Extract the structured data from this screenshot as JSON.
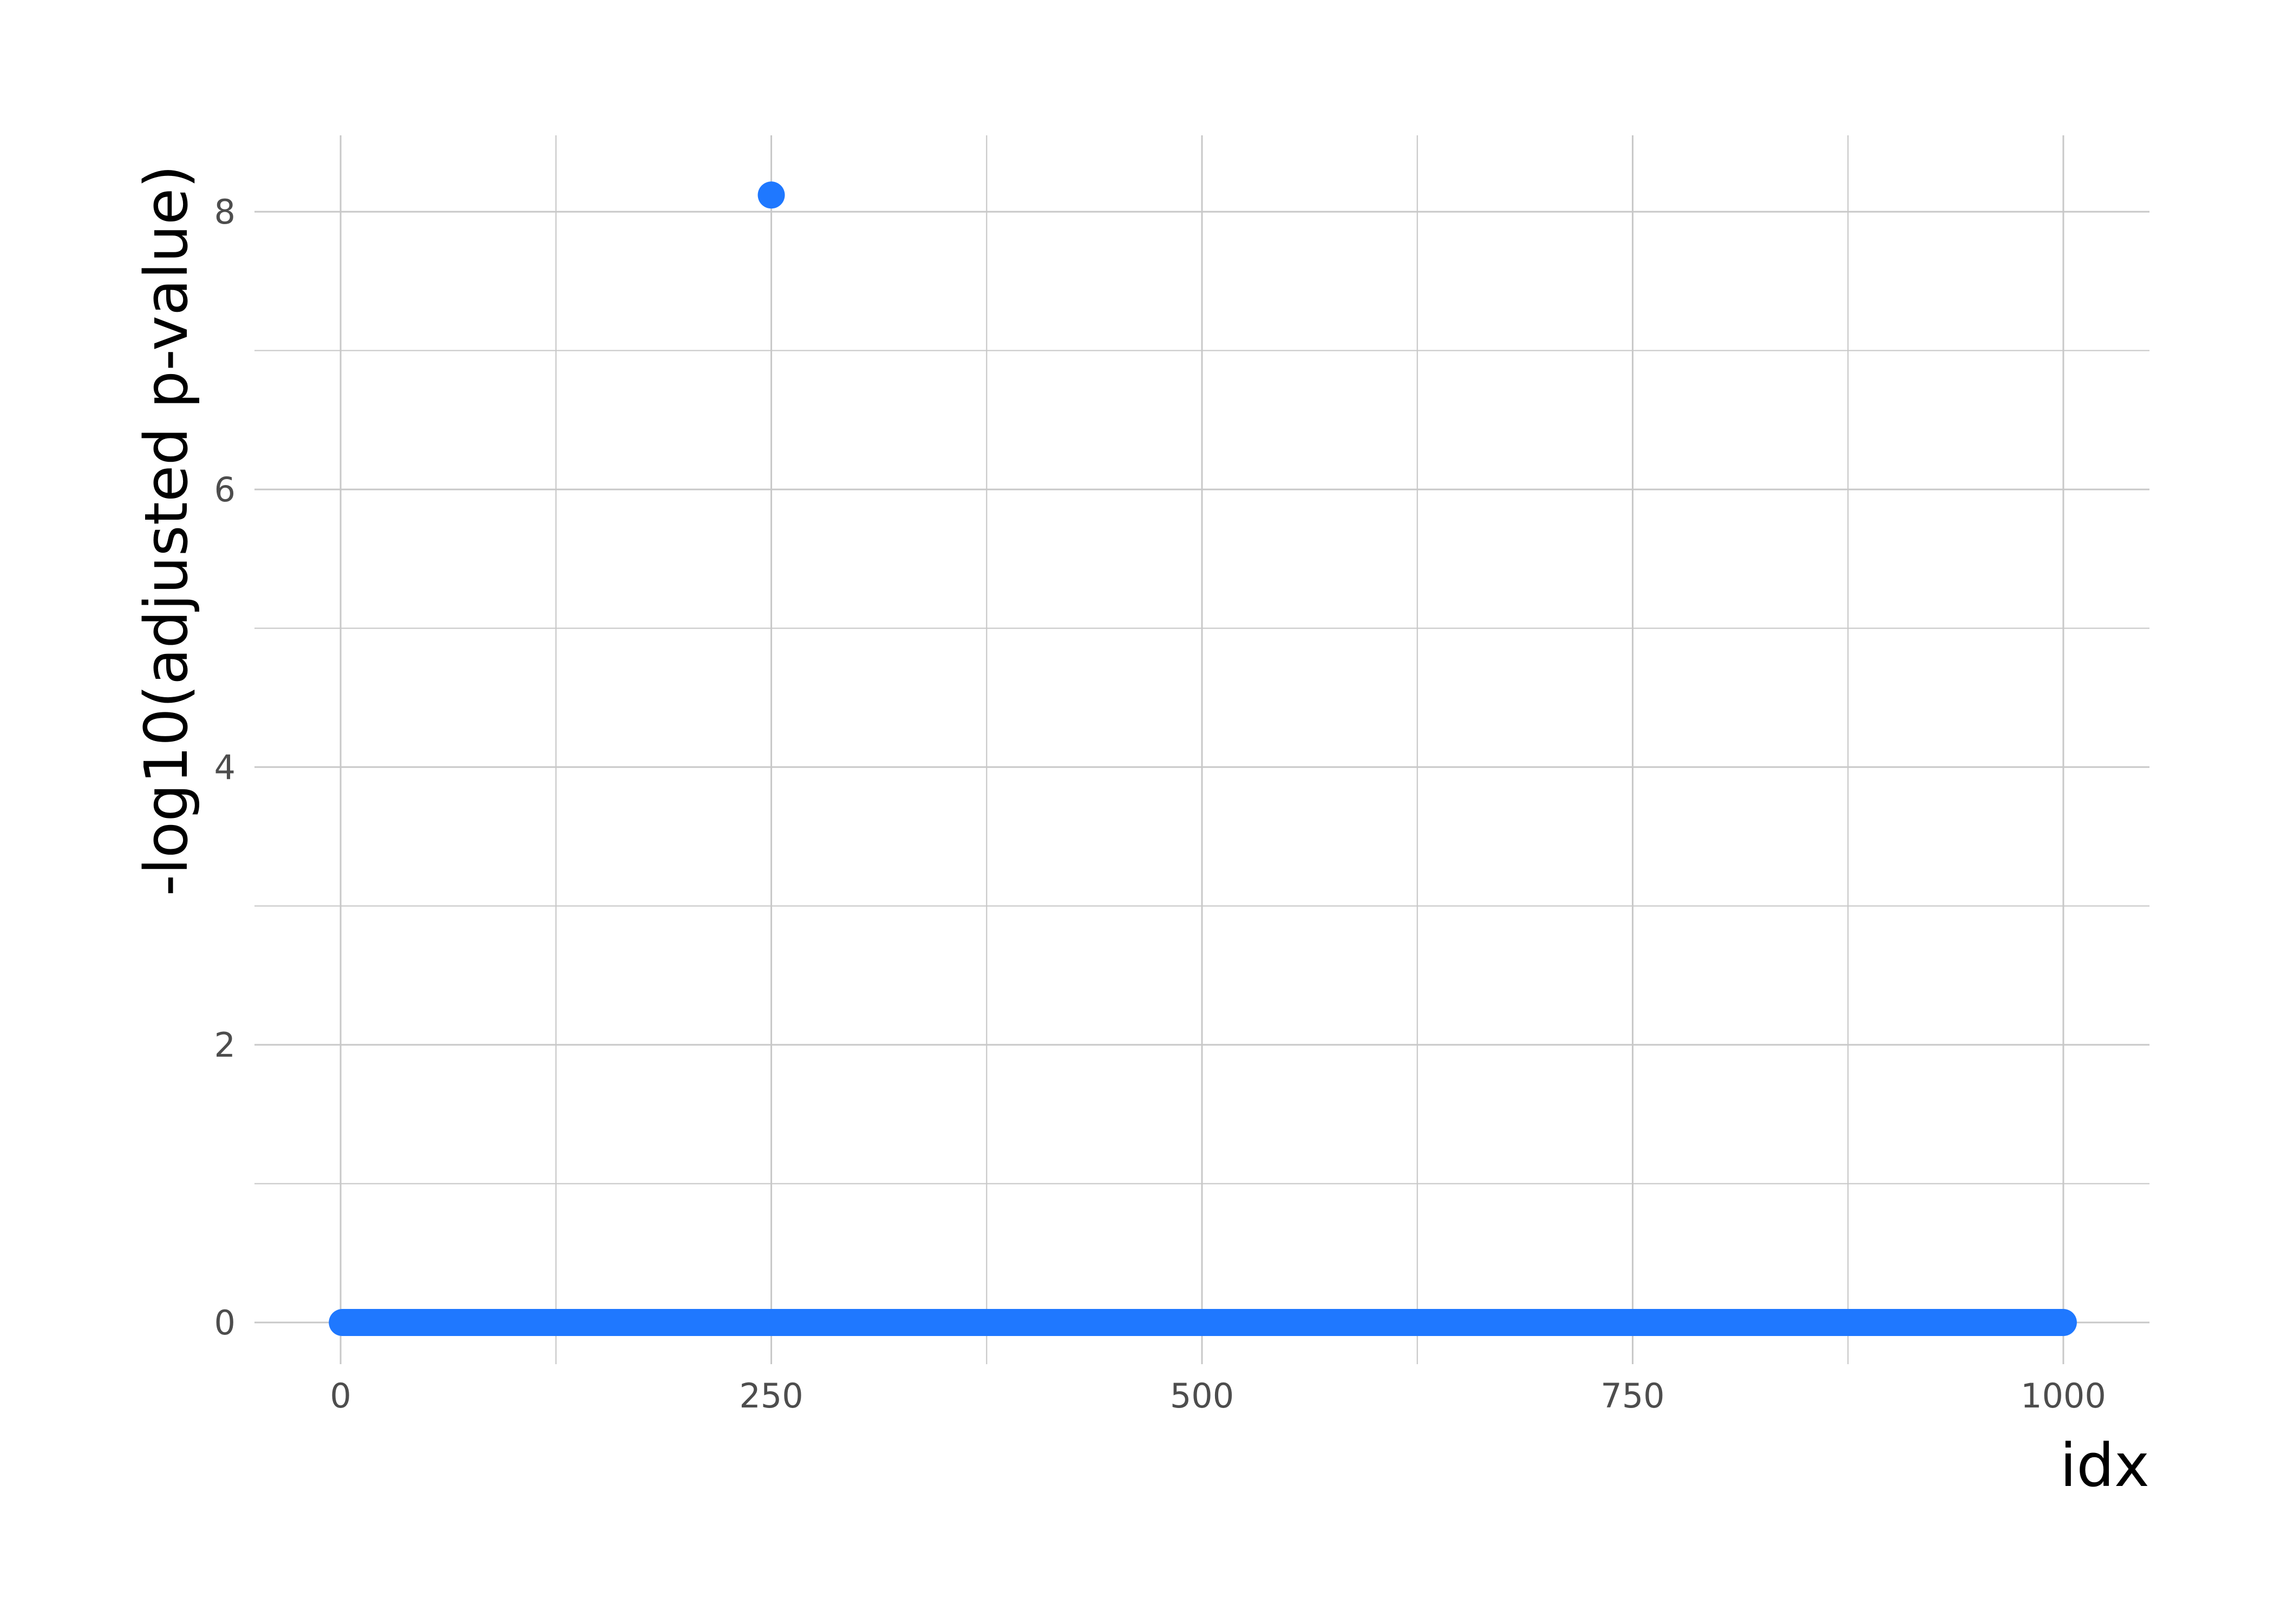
{
  "chart_data": {
    "type": "scatter",
    "title": "",
    "xlabel": "idx",
    "ylabel": "-log10(adjusted p-value)",
    "xlim": [
      -50,
      1050
    ],
    "ylim": [
      -0.3,
      8.55
    ],
    "x_ticks": [
      0,
      250,
      500,
      750,
      1000
    ],
    "x_tick_labels": [
      "0",
      "250",
      "500",
      "750",
      "1000"
    ],
    "x_minor_ticks": [
      125,
      375,
      625,
      875
    ],
    "y_ticks": [
      0,
      2,
      4,
      6,
      8
    ],
    "y_tick_labels": [
      "0",
      "2",
      "4",
      "6",
      "8"
    ],
    "y_minor_ticks": [
      1,
      3,
      5,
      7
    ],
    "grid": true,
    "legend": "none",
    "point_color": "#1f78ff",
    "series": [
      {
        "baseline": {
          "x_from": 1,
          "x_to": 1000,
          "y": 0
        },
        "points": [
          {
            "x": 250,
            "y": 8.12
          }
        ]
      }
    ]
  }
}
